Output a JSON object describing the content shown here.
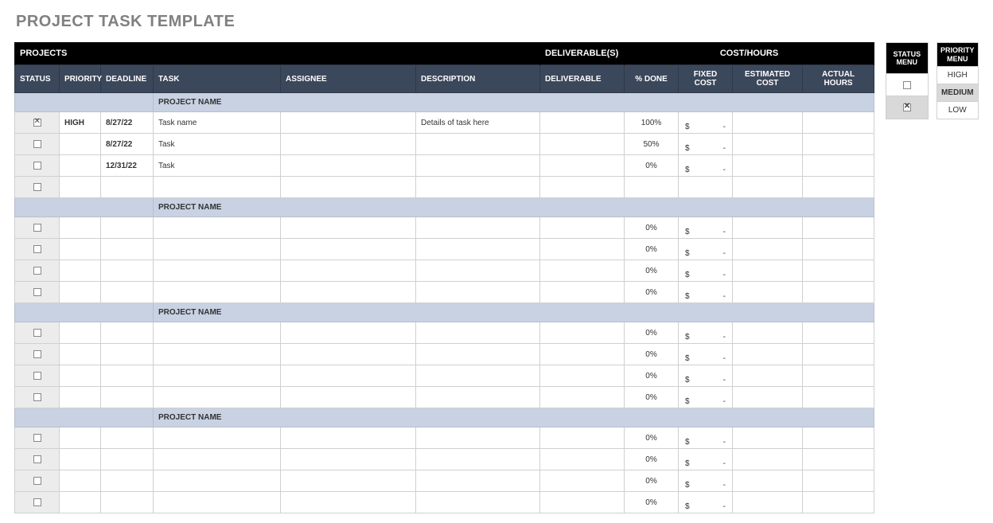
{
  "title": "PROJECT TASK TEMPLATE",
  "colors": {
    "title": "#808080",
    "band_bg": "#000000",
    "band_fg": "#ffffff",
    "header_bg": "#3b475a",
    "header_fg": "#ffffff",
    "project_row_bg": "#c8d2e2",
    "project_row_border": "#b6bfcf",
    "cell_border": "#d0d0d0",
    "status_cell_bg": "#ececec",
    "menu_selected_bg": "#d9d9d9"
  },
  "band": {
    "projects": "PROJECTS",
    "deliverables": "DELIVERABLE(S)",
    "costhours": "COST/HOURS"
  },
  "columns": {
    "status": "STATUS",
    "priority": "PRIORITY",
    "deadline": "DEADLINE",
    "task": "TASK",
    "assignee": "ASSIGNEE",
    "description": "DESCRIPTION",
    "deliverable": "DELIVERABLE",
    "pct_done": "% DONE",
    "fixed_cost": "FIXED COST",
    "est_cost": "ESTIMATED COST",
    "actual_hours": "ACTUAL HOURS"
  },
  "project_label": "PROJECT NAME",
  "currency": "$",
  "dash": "-",
  "groups": [
    {
      "rows": [
        {
          "checked": true,
          "priority": "HIGH",
          "deadline": "8/27/22",
          "task": "Task name",
          "assignee": "",
          "description": "Details of task here",
          "deliverable": "",
          "pct_done": "100%",
          "fixed_cost": true,
          "est_cost": "",
          "actual_hours": ""
        },
        {
          "checked": false,
          "priority": "",
          "deadline": "8/27/22",
          "task": "Task",
          "assignee": "",
          "description": "",
          "deliverable": "",
          "pct_done": "50%",
          "fixed_cost": true,
          "est_cost": "",
          "actual_hours": ""
        },
        {
          "checked": false,
          "priority": "",
          "deadline": "12/31/22",
          "task": "Task",
          "assignee": "",
          "description": "",
          "deliverable": "",
          "pct_done": "0%",
          "fixed_cost": true,
          "est_cost": "",
          "actual_hours": ""
        },
        {
          "checked": false,
          "priority": "",
          "deadline": "",
          "task": "",
          "assignee": "",
          "description": "",
          "deliverable": "",
          "pct_done": "",
          "fixed_cost": false,
          "est_cost": "",
          "actual_hours": ""
        }
      ]
    },
    {
      "rows": [
        {
          "checked": false,
          "priority": "",
          "deadline": "",
          "task": "",
          "assignee": "",
          "description": "",
          "deliverable": "",
          "pct_done": "0%",
          "fixed_cost": true,
          "est_cost": "",
          "actual_hours": ""
        },
        {
          "checked": false,
          "priority": "",
          "deadline": "",
          "task": "",
          "assignee": "",
          "description": "",
          "deliverable": "",
          "pct_done": "0%",
          "fixed_cost": true,
          "est_cost": "",
          "actual_hours": ""
        },
        {
          "checked": false,
          "priority": "",
          "deadline": "",
          "task": "",
          "assignee": "",
          "description": "",
          "deliverable": "",
          "pct_done": "0%",
          "fixed_cost": true,
          "est_cost": "",
          "actual_hours": ""
        },
        {
          "checked": false,
          "priority": "",
          "deadline": "",
          "task": "",
          "assignee": "",
          "description": "",
          "deliverable": "",
          "pct_done": "0%",
          "fixed_cost": true,
          "est_cost": "",
          "actual_hours": ""
        }
      ]
    },
    {
      "rows": [
        {
          "checked": false,
          "priority": "",
          "deadline": "",
          "task": "",
          "assignee": "",
          "description": "",
          "deliverable": "",
          "pct_done": "0%",
          "fixed_cost": true,
          "est_cost": "",
          "actual_hours": ""
        },
        {
          "checked": false,
          "priority": "",
          "deadline": "",
          "task": "",
          "assignee": "",
          "description": "",
          "deliverable": "",
          "pct_done": "0%",
          "fixed_cost": true,
          "est_cost": "",
          "actual_hours": ""
        },
        {
          "checked": false,
          "priority": "",
          "deadline": "",
          "task": "",
          "assignee": "",
          "description": "",
          "deliverable": "",
          "pct_done": "0%",
          "fixed_cost": true,
          "est_cost": "",
          "actual_hours": ""
        },
        {
          "checked": false,
          "priority": "",
          "deadline": "",
          "task": "",
          "assignee": "",
          "description": "",
          "deliverable": "",
          "pct_done": "0%",
          "fixed_cost": true,
          "est_cost": "",
          "actual_hours": ""
        }
      ]
    },
    {
      "rows": [
        {
          "checked": false,
          "priority": "",
          "deadline": "",
          "task": "",
          "assignee": "",
          "description": "",
          "deliverable": "",
          "pct_done": "0%",
          "fixed_cost": true,
          "est_cost": "",
          "actual_hours": ""
        },
        {
          "checked": false,
          "priority": "",
          "deadline": "",
          "task": "",
          "assignee": "",
          "description": "",
          "deliverable": "",
          "pct_done": "0%",
          "fixed_cost": true,
          "est_cost": "",
          "actual_hours": ""
        },
        {
          "checked": false,
          "priority": "",
          "deadline": "",
          "task": "",
          "assignee": "",
          "description": "",
          "deliverable": "",
          "pct_done": "0%",
          "fixed_cost": true,
          "est_cost": "",
          "actual_hours": ""
        },
        {
          "checked": false,
          "priority": "",
          "deadline": "",
          "task": "",
          "assignee": "",
          "description": "",
          "deliverable": "",
          "pct_done": "0%",
          "fixed_cost": true,
          "est_cost": "",
          "actual_hours": ""
        }
      ]
    }
  ],
  "status_menu": {
    "title": "STATUS MENU",
    "options": [
      {
        "checked": false
      },
      {
        "checked": true
      }
    ]
  },
  "priority_menu": {
    "title": "PRIORITY MENU",
    "options": [
      {
        "label": "HIGH",
        "selected": false
      },
      {
        "label": "MEDIUM",
        "selected": true
      },
      {
        "label": "LOW",
        "selected": false
      }
    ]
  }
}
